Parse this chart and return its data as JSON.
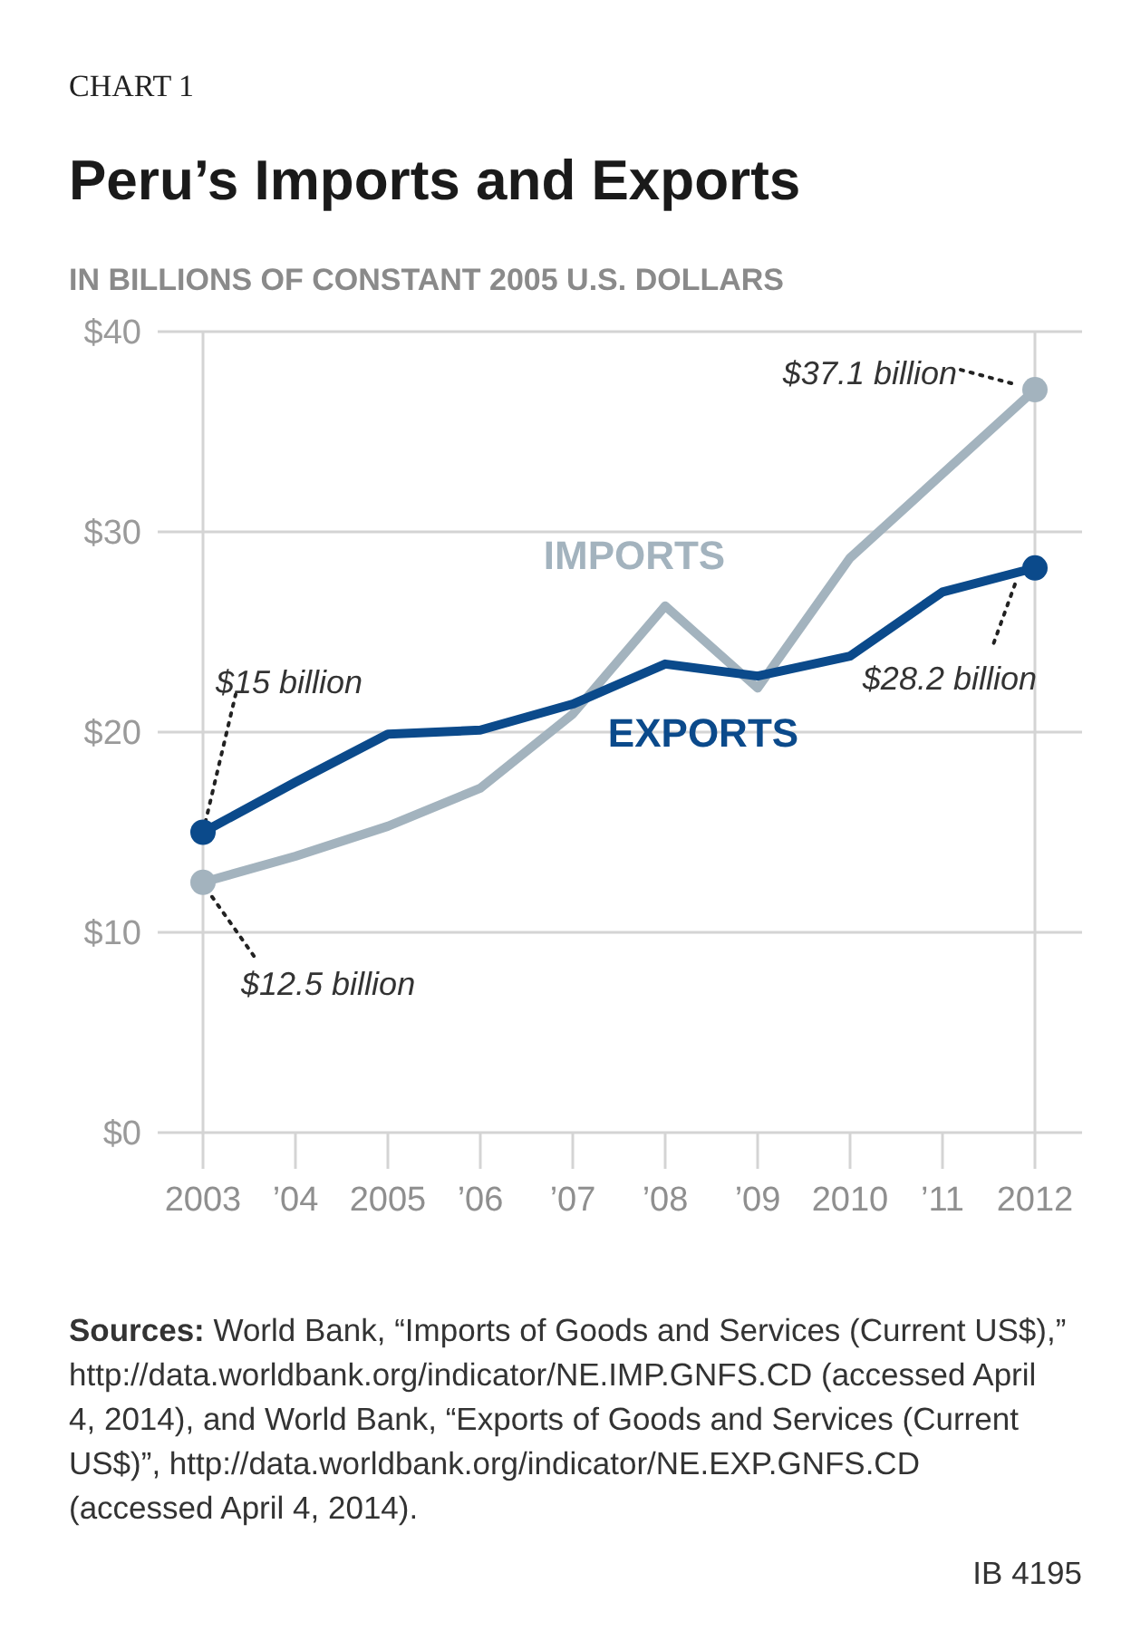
{
  "chart_data": {
    "type": "line",
    "title": "Peru’s Imports and Exports",
    "subtitle": "IN BILLIONS OF CONSTANT 2005 U.S. DOLLARS",
    "categories": [
      "2003",
      "’04",
      "2005",
      "’06",
      "’07",
      "’08",
      "’09",
      "2010",
      "’11",
      "2012"
    ],
    "series": [
      {
        "name": "IMPORTS",
        "color": "#a3b3be",
        "values": [
          12.5,
          13.8,
          15.3,
          17.2,
          20.9,
          26.3,
          22.2,
          28.7,
          32.9,
          37.1
        ]
      },
      {
        "name": "EXPORTS",
        "color": "#0b4a8b",
        "values": [
          15,
          17.5,
          19.9,
          20.1,
          21.4,
          23.4,
          22.8,
          23.8,
          27.0,
          28.2
        ]
      }
    ],
    "ylim": [
      0,
      40
    ],
    "yticks": [
      {
        "value": 0,
        "label": "$0"
      },
      {
        "value": 10,
        "label": "$10"
      },
      {
        "value": 20,
        "label": "$20"
      },
      {
        "value": 30,
        "label": "$30"
      },
      {
        "value": 40,
        "label": "$40"
      }
    ],
    "grid": true,
    "marker": "none",
    "line_style": "solid",
    "annotations": [
      {
        "text": "$15 billion",
        "x": "2003",
        "y": 15
      },
      {
        "text": "$12.5 billion",
        "x": "2003",
        "y": 12.5
      },
      {
        "text": "$37.1 billion",
        "x": "2012",
        "y": 37.1
      },
      {
        "text": "$28.2 billion",
        "x": "2012",
        "y": 28.2
      },
      "CHART 1",
      "Sources: World Bank, “Imports of Goods and Services (Current US$),” http://data.worldbank.org/indicator/NE.IMP.GNFS.CD (accessed April 4, 2014), and World Bank, “Exports of Goods and Services (Current US$)”, http://data.worldbank.org/indicator/NE.EXP.GNFS.CD (accessed April 4, 2014).",
      "IB 4195"
    ]
  }
}
